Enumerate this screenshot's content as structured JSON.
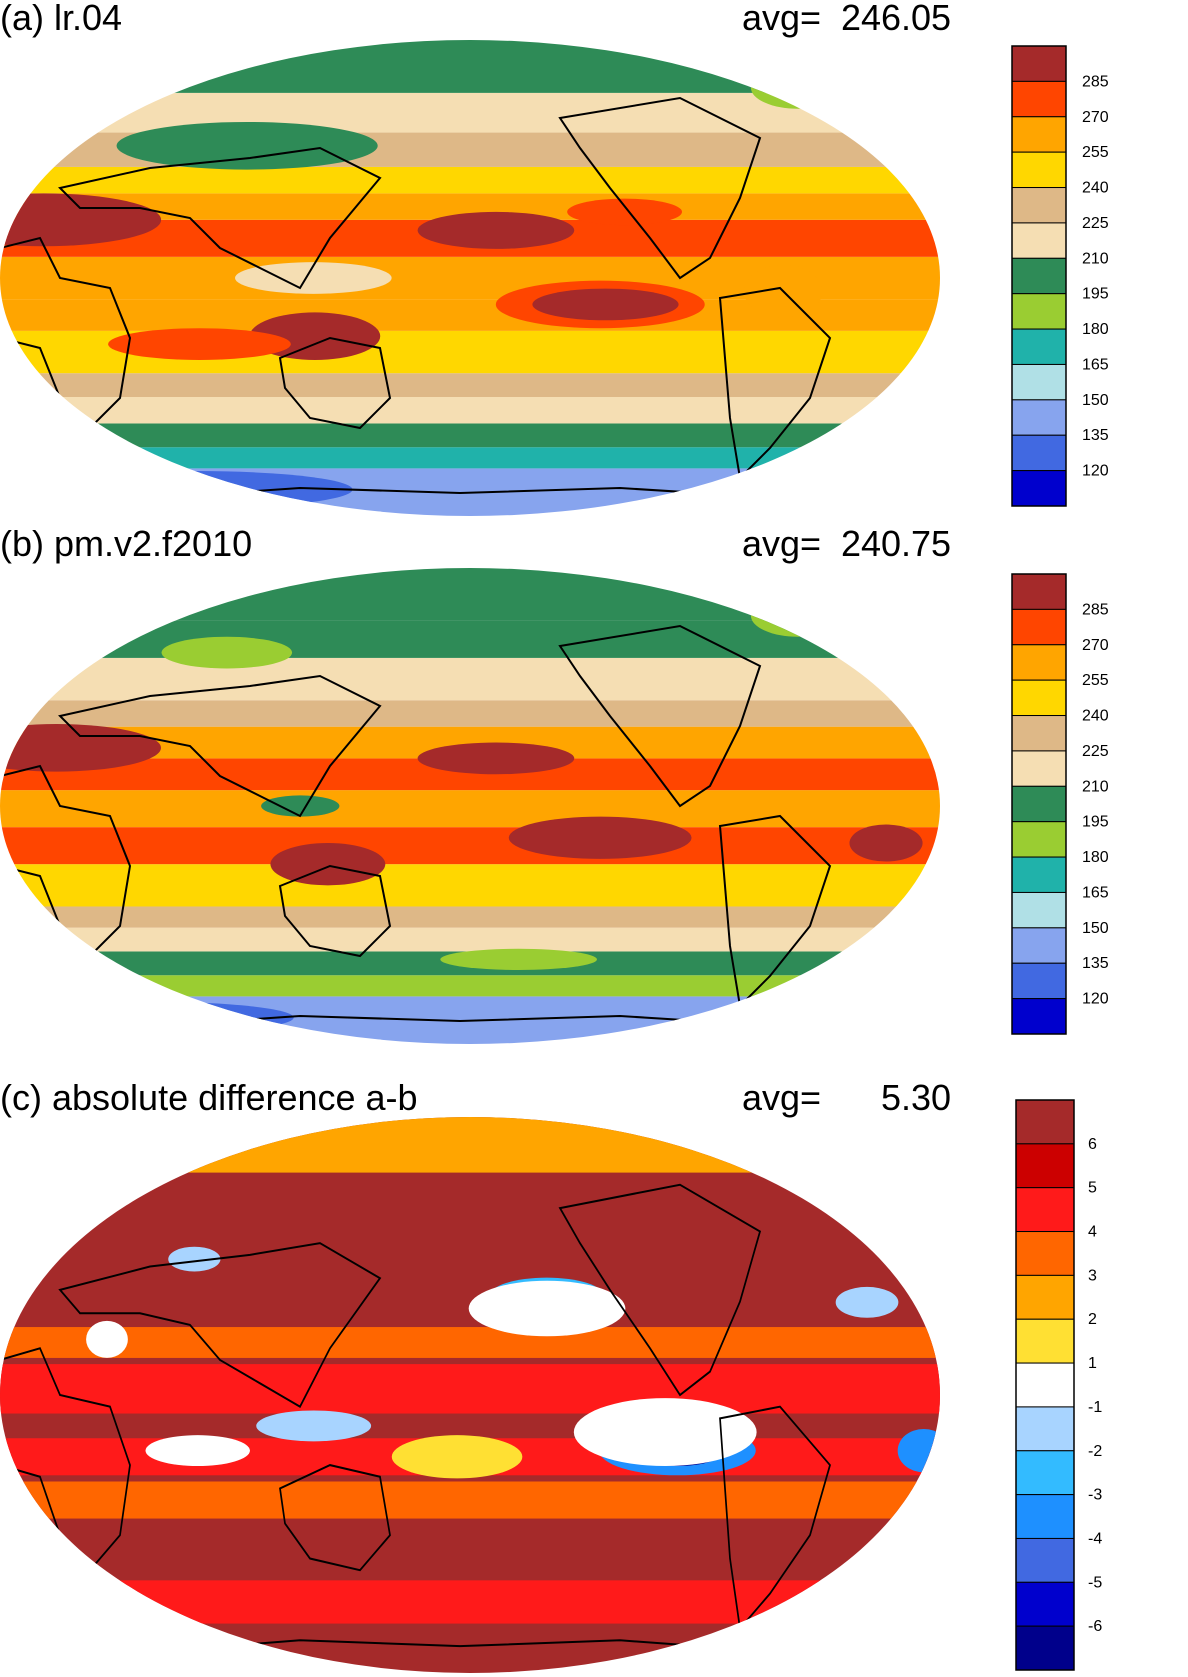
{
  "chart_data": [
    {
      "type": "heatmap",
      "panel_label": "(a) lr.04",
      "avg_label": "avg=",
      "avg_value": "246.05",
      "map_projection": "robinson",
      "map_center_longitude": 180,
      "colorbar": {
        "orientation": "vertical",
        "placement": "right",
        "tick_labels": [
          "285",
          "270",
          "255",
          "240",
          "225",
          "210",
          "195",
          "180",
          "165",
          "150",
          "135",
          "120"
        ],
        "colors": [
          "#a52a2a",
          "#ff4500",
          "#ffa500",
          "#ffd700",
          "#deb887",
          "#f5deb3",
          "#2e8b57",
          "#9acd32",
          "#20b2aa",
          "#b0e0e6",
          "#87a4ee",
          "#4169e1",
          "#0000cd"
        ]
      },
      "features": [
        {
          "kind": "band",
          "lat": [
            -90,
            -72
          ],
          "color": "#87a4ee"
        },
        {
          "kind": "band",
          "lat": [
            -72,
            -64
          ],
          "color": "#20b2aa"
        },
        {
          "kind": "band",
          "lat": [
            -64,
            -55
          ],
          "color": "#2e8b57"
        },
        {
          "kind": "band",
          "lat": [
            -55,
            -45
          ],
          "color": "#f5deb3"
        },
        {
          "kind": "band",
          "lat": [
            -45,
            -36
          ],
          "color": "#deb887"
        },
        {
          "kind": "band",
          "lat": [
            -36,
            -20
          ],
          "color": "#ffd700"
        },
        {
          "kind": "band",
          "lat": [
            -20,
            -8
          ],
          "color": "#ffa500"
        },
        {
          "kind": "band",
          "lat": [
            -8,
            8
          ],
          "color": "#ffa500"
        },
        {
          "kind": "band",
          "lat": [
            8,
            22
          ],
          "color": "#ff4500"
        },
        {
          "kind": "band",
          "lat": [
            22,
            32
          ],
          "color": "#ffa500"
        },
        {
          "kind": "band",
          "lat": [
            32,
            42
          ],
          "color": "#ffd700"
        },
        {
          "kind": "band",
          "lat": [
            42,
            55
          ],
          "color": "#deb887"
        },
        {
          "kind": "band",
          "lat": [
            55,
            70
          ],
          "color": "#f5deb3"
        },
        {
          "kind": "band",
          "lat": [
            70,
            90
          ],
          "color": "#2e8b57"
        },
        {
          "kind": "blob",
          "lon": -130,
          "lat": -10,
          "rx": 40,
          "ry": 9,
          "color": "#ff4500"
        },
        {
          "kind": "blob",
          "lon": -128,
          "lat": -10,
          "rx": 28,
          "ry": 6,
          "color": "#a52a2a"
        },
        {
          "kind": "blob",
          "lon": -170,
          "lat": 18,
          "rx": 30,
          "ry": 7,
          "color": "#a52a2a"
        },
        {
          "kind": "blob",
          "lon": 15,
          "lat": 22,
          "rx": 45,
          "ry": 10,
          "color": "#a52a2a"
        },
        {
          "kind": "blob",
          "lon": 120,
          "lat": -22,
          "rx": 25,
          "ry": 9,
          "color": "#a52a2a"
        },
        {
          "kind": "blob",
          "lon": -120,
          "lat": 25,
          "rx": 22,
          "ry": 5,
          "color": "#ff4500"
        },
        {
          "kind": "blob",
          "lon": 75,
          "lat": -25,
          "rx": 35,
          "ry": 6,
          "color": "#ff4500"
        },
        {
          "kind": "blob",
          "lon": 120,
          "lat": 0,
          "rx": 30,
          "ry": 6,
          "color": "#f5deb3"
        },
        {
          "kind": "blob",
          "lon": -60,
          "lat": -5,
          "rx": 15,
          "ry": 10,
          "color": "#ffa500"
        },
        {
          "kind": "blob",
          "lon": 90,
          "lat": 50,
          "rx": 50,
          "ry": 9,
          "color": "#2e8b57"
        },
        {
          "kind": "blob",
          "lon": -40,
          "lat": 72,
          "rx": 18,
          "ry": 8,
          "color": "#9acd32"
        },
        {
          "kind": "blob",
          "lon": 60,
          "lat": -80,
          "rx": 60,
          "ry": 7,
          "color": "#4169e1"
        },
        {
          "kind": "blob",
          "lon": 10,
          "lat": -76,
          "rx": 50,
          "ry": 5,
          "color": "#b0e0e6"
        }
      ]
    },
    {
      "type": "heatmap",
      "panel_label": "(b) pm.v2.f2010",
      "avg_label": "avg=",
      "avg_value": "240.75",
      "map_projection": "robinson",
      "map_center_longitude": 180,
      "colorbar": {
        "orientation": "vertical",
        "placement": "right",
        "tick_labels": [
          "285",
          "270",
          "255",
          "240",
          "225",
          "210",
          "195",
          "180",
          "165",
          "150",
          "135",
          "120"
        ],
        "colors": [
          "#a52a2a",
          "#ff4500",
          "#ffa500",
          "#ffd700",
          "#deb887",
          "#f5deb3",
          "#2e8b57",
          "#9acd32",
          "#20b2aa",
          "#b0e0e6",
          "#87a4ee",
          "#4169e1",
          "#0000cd"
        ]
      },
      "features": [
        {
          "kind": "band",
          "lat": [
            -90,
            -72
          ],
          "color": "#87a4ee"
        },
        {
          "kind": "band",
          "lat": [
            -72,
            -64
          ],
          "color": "#9acd32"
        },
        {
          "kind": "band",
          "lat": [
            -64,
            -55
          ],
          "color": "#2e8b57"
        },
        {
          "kind": "band",
          "lat": [
            -55,
            -46
          ],
          "color": "#f5deb3"
        },
        {
          "kind": "band",
          "lat": [
            -46,
            -38
          ],
          "color": "#deb887"
        },
        {
          "kind": "band",
          "lat": [
            -38,
            -22
          ],
          "color": "#ffd700"
        },
        {
          "kind": "band",
          "lat": [
            -22,
            -8
          ],
          "color": "#ff4500"
        },
        {
          "kind": "band",
          "lat": [
            -8,
            6
          ],
          "color": "#ffa500"
        },
        {
          "kind": "band",
          "lat": [
            6,
            18
          ],
          "color": "#ff4500"
        },
        {
          "kind": "band",
          "lat": [
            18,
            30
          ],
          "color": "#ffa500"
        },
        {
          "kind": "band",
          "lat": [
            30,
            40
          ],
          "color": "#deb887"
        },
        {
          "kind": "band",
          "lat": [
            40,
            56
          ],
          "color": "#f5deb3"
        },
        {
          "kind": "band",
          "lat": [
            56,
            70
          ],
          "color": "#2e8b57"
        },
        {
          "kind": "band",
          "lat": [
            70,
            90
          ],
          "color": "#2e8b57"
        },
        {
          "kind": "blob",
          "lon": -130,
          "lat": -12,
          "rx": 35,
          "ry": 8,
          "color": "#a52a2a"
        },
        {
          "kind": "blob",
          "lon": -170,
          "lat": 18,
          "rx": 30,
          "ry": 6,
          "color": "#a52a2a"
        },
        {
          "kind": "blob",
          "lon": 20,
          "lat": 22,
          "rx": 40,
          "ry": 9,
          "color": "#a52a2a"
        },
        {
          "kind": "blob",
          "lon": 125,
          "lat": -22,
          "rx": 22,
          "ry": 8,
          "color": "#a52a2a"
        },
        {
          "kind": "blob",
          "lon": -20,
          "lat": -14,
          "rx": 14,
          "ry": 7,
          "color": "#a52a2a"
        },
        {
          "kind": "blob",
          "lon": 115,
          "lat": 0,
          "rx": 15,
          "ry": 4,
          "color": "#2e8b57"
        },
        {
          "kind": "blob",
          "lon": 80,
          "lat": 58,
          "rx": 25,
          "ry": 6,
          "color": "#9acd32"
        },
        {
          "kind": "blob",
          "lon": -40,
          "lat": 72,
          "rx": 18,
          "ry": 8,
          "color": "#9acd32"
        },
        {
          "kind": "blob",
          "lon": 40,
          "lat": -80,
          "rx": 55,
          "ry": 6,
          "color": "#4169e1"
        },
        {
          "kind": "blob",
          "lon": -160,
          "lat": -58,
          "rx": 30,
          "ry": 4,
          "color": "#9acd32"
        }
      ]
    },
    {
      "type": "heatmap",
      "panel_label": "(c) absolute difference a-b",
      "avg_label": "avg=",
      "avg_value": "5.30",
      "map_projection": "robinson",
      "map_center_longitude": 180,
      "colorbar": {
        "orientation": "vertical",
        "placement": "right",
        "tick_labels": [
          "6",
          "5",
          "4",
          "3",
          "2",
          "1",
          "-1",
          "-2",
          "-3",
          "-4",
          "-5",
          "-6"
        ],
        "colors": [
          "#a52a2a",
          "#cc0000",
          "#ff1a1a",
          "#ff6600",
          "#ffa500",
          "#ffe033",
          "#ffffff",
          "#a8d4ff",
          "#33bbff",
          "#1e90ff",
          "#4169e1",
          "#0000cd",
          "#00008b"
        ]
      },
      "features": [
        {
          "kind": "band",
          "lat": [
            -90,
            90
          ],
          "color": "#a52a2a"
        },
        {
          "kind": "band",
          "lat": [
            -74,
            -60
          ],
          "color": "#ff1a1a"
        },
        {
          "kind": "band",
          "lat": [
            -40,
            -28
          ],
          "color": "#ff6600"
        },
        {
          "kind": "band",
          "lat": [
            -26,
            -14
          ],
          "color": "#ff1a1a"
        },
        {
          "kind": "band",
          "lat": [
            -6,
            10
          ],
          "color": "#ff1a1a"
        },
        {
          "kind": "band",
          "lat": [
            12,
            22
          ],
          "color": "#ff6600"
        },
        {
          "kind": "band",
          "lat": [
            72,
            90
          ],
          "color": "#ffa500"
        },
        {
          "kind": "blob",
          "lon": -100,
          "lat": -18,
          "rx": 30,
          "ry": 8,
          "color": "#1e90ff"
        },
        {
          "kind": "blob",
          "lon": -100,
          "lat": -18,
          "rx": 18,
          "ry": 5,
          "color": "#00008b"
        },
        {
          "kind": "blob",
          "lon": -5,
          "lat": -18,
          "rx": 10,
          "ry": 7,
          "color": "#1e90ff"
        },
        {
          "kind": "blob",
          "lon": -150,
          "lat": 32,
          "rx": 22,
          "ry": 6,
          "color": "#33bbff"
        },
        {
          "kind": "blob",
          "lon": -150,
          "lat": 32,
          "rx": 12,
          "ry": 3,
          "color": "#1e90ff"
        },
        {
          "kind": "blob",
          "lon": -25,
          "lat": 30,
          "rx": 12,
          "ry": 5,
          "color": "#a8d4ff"
        },
        {
          "kind": "blob",
          "lon": 120,
          "lat": -10,
          "rx": 22,
          "ry": 5,
          "color": "#a8d4ff"
        },
        {
          "kind": "blob",
          "lon": 75,
          "lat": -18,
          "rx": 20,
          "ry": 5,
          "color": "#ffffff"
        },
        {
          "kind": "blob",
          "lon": -105,
          "lat": -12,
          "rx": 35,
          "ry": 11,
          "color": "#ffffff"
        },
        {
          "kind": "blob",
          "lon": -150,
          "lat": 28,
          "rx": 30,
          "ry": 9,
          "color": "#ffffff"
        },
        {
          "kind": "blob",
          "lon": 175,
          "lat": -20,
          "rx": 25,
          "ry": 7,
          "color": "#ffe033"
        },
        {
          "kind": "blob",
          "lon": 40,
          "lat": 18,
          "rx": 8,
          "ry": 6,
          "color": "#ffffff"
        },
        {
          "kind": "blob",
          "lon": 70,
          "lat": 44,
          "rx": 10,
          "ry": 4,
          "color": "#a8d4ff"
        }
      ]
    }
  ]
}
